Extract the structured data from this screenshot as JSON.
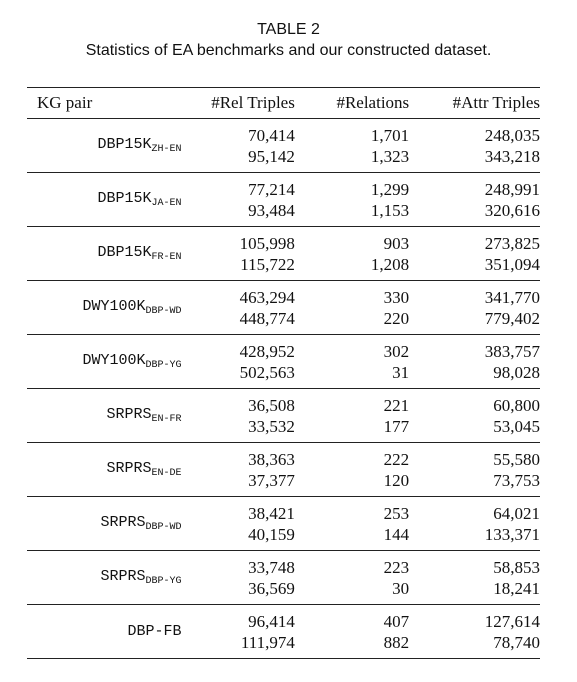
{
  "caption": {
    "label": "TABLE 2",
    "text": "Statistics of EA benchmarks and our constructed dataset."
  },
  "columns": {
    "kg_pair": "KG pair",
    "rel_triples": "#Rel Triples",
    "relations": "#Relations",
    "attr_triples": "#Attr Triples"
  },
  "rows": [
    {
      "name": "DBP15K",
      "sub": "ZH-EN",
      "rel_triples": [
        "70,414",
        "95,142"
      ],
      "relations": [
        "1,701",
        "1,323"
      ],
      "attr_triples": [
        "248,035",
        "343,218"
      ]
    },
    {
      "name": "DBP15K",
      "sub": "JA-EN",
      "rel_triples": [
        "77,214",
        "93,484"
      ],
      "relations": [
        "1,299",
        "1,153"
      ],
      "attr_triples": [
        "248,991",
        "320,616"
      ]
    },
    {
      "name": "DBP15K",
      "sub": "FR-EN",
      "rel_triples": [
        "105,998",
        "115,722"
      ],
      "relations": [
        "903",
        "1,208"
      ],
      "attr_triples": [
        "273,825",
        "351,094"
      ]
    },
    {
      "name": "DWY100K",
      "sub": "DBP-WD",
      "rel_triples": [
        "463,294",
        "448,774"
      ],
      "relations": [
        "330",
        "220"
      ],
      "attr_triples": [
        "341,770",
        "779,402"
      ]
    },
    {
      "name": "DWY100K",
      "sub": "DBP-YG",
      "rel_triples": [
        "428,952",
        "502,563"
      ],
      "relations": [
        "302",
        "31"
      ],
      "attr_triples": [
        "383,757",
        "98,028"
      ]
    },
    {
      "name": "SRPRS",
      "sub": "EN-FR",
      "rel_triples": [
        "36,508",
        "33,532"
      ],
      "relations": [
        "221",
        "177"
      ],
      "attr_triples": [
        "60,800",
        "53,045"
      ]
    },
    {
      "name": "SRPRS",
      "sub": "EN-DE",
      "rel_triples": [
        "38,363",
        "37,377"
      ],
      "relations": [
        "222",
        "120"
      ],
      "attr_triples": [
        "55,580",
        "73,753"
      ]
    },
    {
      "name": "SRPRS",
      "sub": "DBP-WD",
      "rel_triples": [
        "38,421",
        "40,159"
      ],
      "relations": [
        "253",
        "144"
      ],
      "attr_triples": [
        "64,021",
        "133,371"
      ]
    },
    {
      "name": "SRPRS",
      "sub": "DBP-YG",
      "rel_triples": [
        "33,748",
        "36,569"
      ],
      "relations": [
        "223",
        "30"
      ],
      "attr_triples": [
        "58,853",
        "18,241"
      ]
    },
    {
      "name": "DBP-FB",
      "sub": "",
      "rel_triples": [
        "96,414",
        "111,974"
      ],
      "relations": [
        "407",
        "882"
      ],
      "attr_triples": [
        "127,614",
        "78,740"
      ]
    }
  ]
}
